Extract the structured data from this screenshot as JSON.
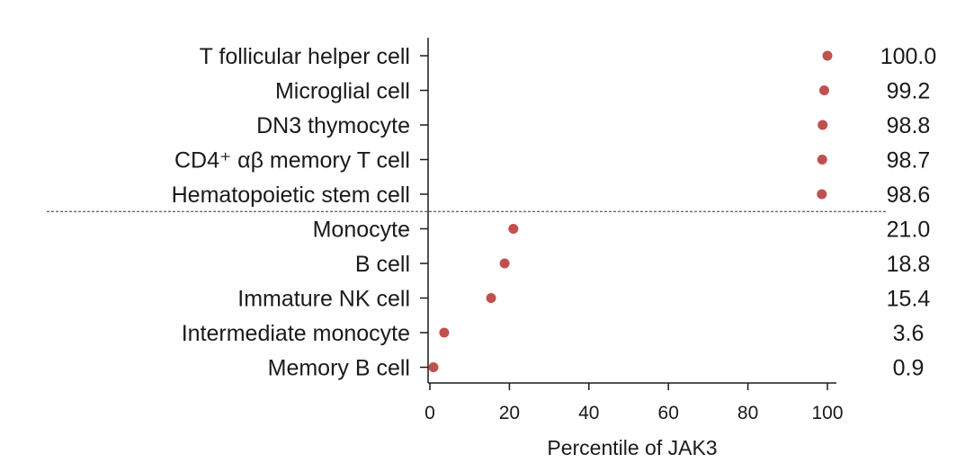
{
  "chart_data": {
    "type": "scatter",
    "categories": [
      "T follicular helper cell",
      "Microglial cell",
      "DN3 thymocyte",
      "CD4⁺ αβ memory T cell",
      "Hematopoietic stem cell",
      "Monocyte",
      "B cell",
      "Immature NK cell",
      "Intermediate monocyte",
      "Memory B cell"
    ],
    "values": [
      100.0,
      99.2,
      98.8,
      98.7,
      98.6,
      21.0,
      18.8,
      15.4,
      3.6,
      0.9
    ],
    "value_labels": [
      "100.0",
      "99.2",
      "98.8",
      "98.7",
      "98.6",
      "21.0",
      "18.8",
      "15.4",
      "3.6",
      "0.9"
    ],
    "xlabel": "Percentile of JAK3",
    "ylabel": "",
    "xlim": [
      0,
      100
    ],
    "xticks": [
      "0",
      "20",
      "40",
      "60",
      "80",
      "100"
    ],
    "separator_after_index": 4,
    "grid": false,
    "colors": {
      "point": "#c0504d",
      "axis": "#1a1a1a",
      "separator": "#333333"
    }
  }
}
